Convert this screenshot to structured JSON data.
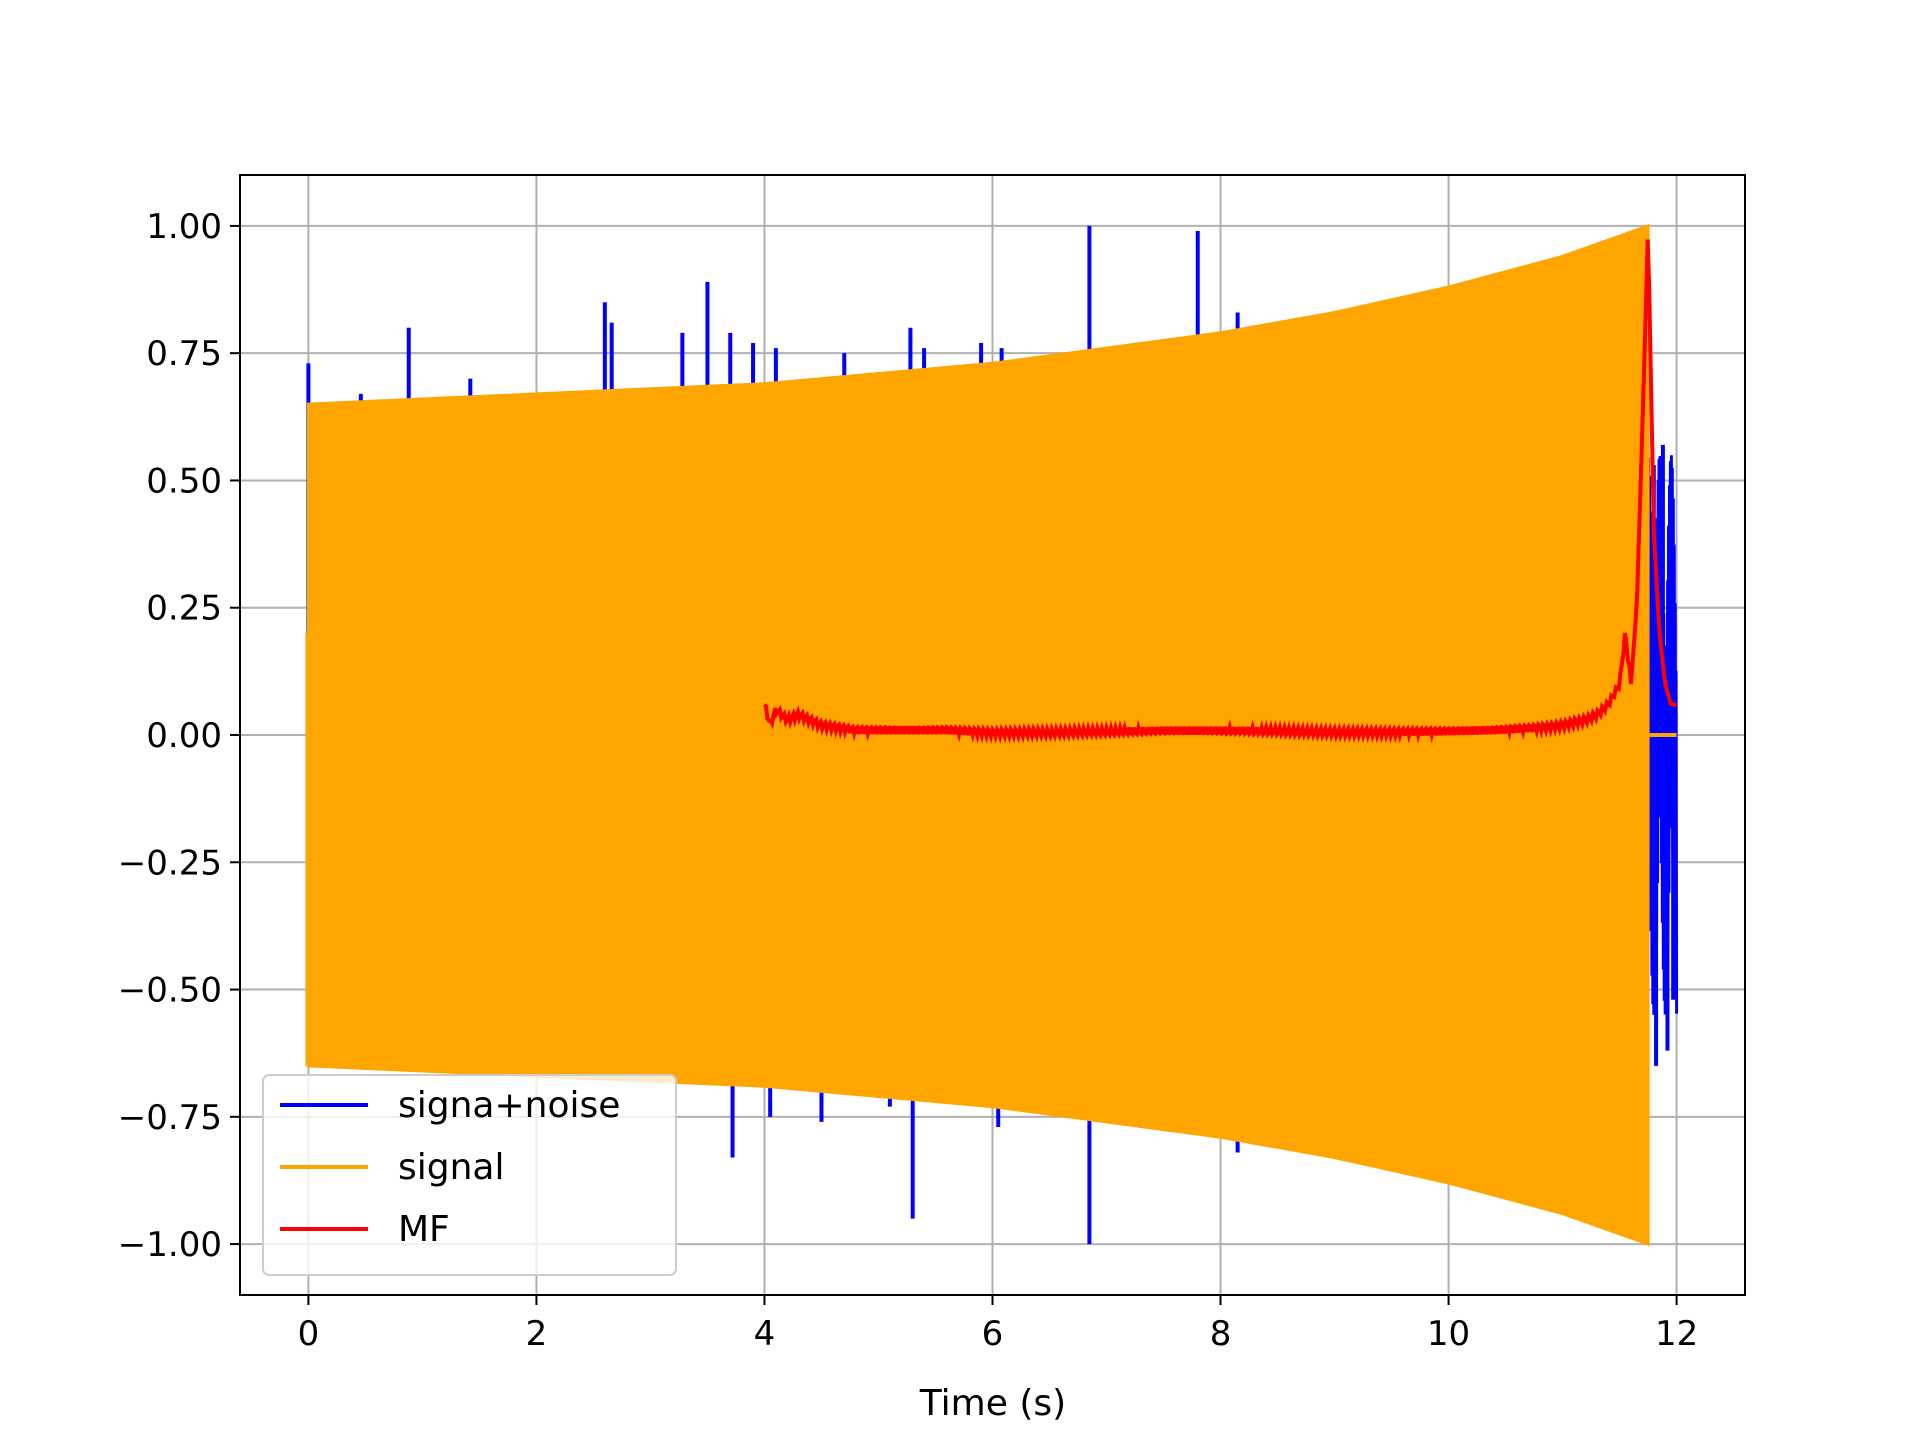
{
  "chart_data": {
    "type": "line",
    "title": "",
    "xlabel": "Time (s)",
    "ylabel": "",
    "xlim": [
      -0.6,
      12.6
    ],
    "ylim": [
      -1.1,
      1.1
    ],
    "xticks": [
      0,
      2,
      4,
      6,
      8,
      10,
      12
    ],
    "xtick_labels": [
      "0",
      "2",
      "4",
      "6",
      "8",
      "10",
      "12"
    ],
    "yticks": [
      1.0,
      0.75,
      0.5,
      0.25,
      0.0,
      -0.25,
      -0.5,
      -0.75,
      -1.0
    ],
    "ytick_labels": [
      "1.00",
      "0.75",
      "0.50",
      "0.25",
      "0.00",
      "−0.25",
      "−0.50",
      "−0.75",
      "−1.00"
    ],
    "grid": true,
    "legend": "lower-left",
    "series": [
      {
        "name": "signa+noise",
        "color": "#0000ff",
        "envelope_x": [
          0,
          1,
          2,
          3,
          4,
          5,
          6,
          7,
          8,
          9,
          10,
          11,
          11.75,
          12
        ],
        "envelope_upper": [
          0.65,
          0.66,
          0.67,
          0.68,
          0.69,
          0.71,
          0.73,
          0.76,
          0.79,
          0.83,
          0.88,
          0.94,
          1.0,
          0.0
        ],
        "spikes": [
          {
            "x": 0.0,
            "y": 0.73
          },
          {
            "x": 0.46,
            "y": 0.67
          },
          {
            "x": 0.88,
            "y": 0.8
          },
          {
            "x": 1.42,
            "y": 0.7
          },
          {
            "x": 2.6,
            "y": 0.85
          },
          {
            "x": 2.66,
            "y": 0.81
          },
          {
            "x": 3.28,
            "y": 0.79
          },
          {
            "x": 3.5,
            "y": 0.89
          },
          {
            "x": 3.7,
            "y": 0.79
          },
          {
            "x": 3.9,
            "y": 0.77
          },
          {
            "x": 4.1,
            "y": 0.76
          },
          {
            "x": 4.7,
            "y": 0.75
          },
          {
            "x": 5.28,
            "y": 0.8
          },
          {
            "x": 5.4,
            "y": 0.76
          },
          {
            "x": 5.9,
            "y": 0.77
          },
          {
            "x": 6.08,
            "y": 0.76
          },
          {
            "x": 6.85,
            "y": 1.0
          },
          {
            "x": 7.8,
            "y": 0.99
          },
          {
            "x": 8.15,
            "y": 0.83
          },
          {
            "x": 3.72,
            "y": -0.83
          },
          {
            "x": 4.05,
            "y": -0.75
          },
          {
            "x": 4.5,
            "y": -0.76
          },
          {
            "x": 5.3,
            "y": -0.95
          },
          {
            "x": 5.1,
            "y": -0.73
          },
          {
            "x": 6.05,
            "y": -0.77
          },
          {
            "x": 6.85,
            "y": -1.0
          },
          {
            "x": 8.15,
            "y": -0.82
          },
          {
            "x": 11.8,
            "y": 0.53
          },
          {
            "x": 11.88,
            "y": 0.57
          },
          {
            "x": 11.95,
            "y": 0.5
          },
          {
            "x": 11.82,
            "y": -0.65
          },
          {
            "x": 11.92,
            "y": -0.62
          },
          {
            "x": 11.97,
            "y": -0.52
          }
        ]
      },
      {
        "name": "signal",
        "color": "#ffa500",
        "envelope_x": [
          0,
          1,
          2,
          3,
          4,
          5,
          6,
          7,
          8,
          9,
          10,
          11,
          11.75
        ],
        "envelope_upper": [
          0.65,
          0.66,
          0.67,
          0.68,
          0.69,
          0.71,
          0.73,
          0.76,
          0.79,
          0.83,
          0.88,
          0.94,
          1.0
        ],
        "tail_x": [
          11.75,
          12.0
        ],
        "tail_y": [
          0.0,
          0.0
        ]
      },
      {
        "name": "MF",
        "color": "#ff0000",
        "x": [
          4.0,
          4.05,
          4.1,
          4.2,
          4.3,
          4.5,
          4.8,
          5.2,
          5.6,
          6.0,
          6.5,
          7.0,
          7.5,
          8.0,
          8.5,
          9.0,
          9.5,
          10.0,
          10.4,
          10.8,
          11.0,
          11.2,
          11.3,
          11.4,
          11.5,
          11.55,
          11.6,
          11.65,
          11.7,
          11.75,
          11.8,
          11.85,
          11.9,
          11.95,
          12.0
        ],
        "y": [
          0.06,
          0.02,
          0.05,
          0.03,
          0.04,
          0.02,
          0.01,
          0.01,
          0.01,
          0.005,
          0.005,
          0.006,
          0.008,
          0.008,
          0.007,
          0.005,
          0.006,
          0.008,
          0.01,
          0.015,
          0.02,
          0.03,
          0.04,
          0.06,
          0.1,
          0.2,
          0.1,
          0.25,
          0.6,
          1.0,
          0.4,
          0.2,
          0.1,
          0.06,
          0.06
        ]
      }
    ]
  }
}
